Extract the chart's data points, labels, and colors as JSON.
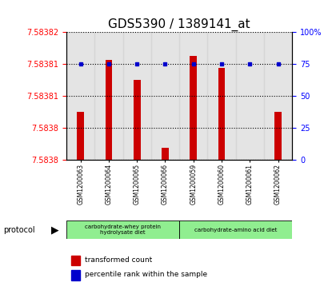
{
  "title": "GDS5390 / 1389141_at",
  "samples": [
    "GSM1200063",
    "GSM1200064",
    "GSM1200065",
    "GSM1200066",
    "GSM1200059",
    "GSM1200060",
    "GSM1200061",
    "GSM1200062"
  ],
  "red_values": [
    7.583802,
    7.583815,
    7.58381,
    7.583793,
    7.583816,
    7.583813,
    7.583781,
    7.583802
  ],
  "blue_values": [
    75,
    75,
    75,
    75,
    75,
    75,
    75,
    75
  ],
  "y_min": 7.58379,
  "y_max": 7.583822,
  "left_tick_labels": [
    "7.5838",
    "7.5838",
    "7.58381",
    "7.58381",
    "7.58382"
  ],
  "right_y_ticks": [
    0,
    25,
    50,
    75,
    100
  ],
  "right_y_labels": [
    "0",
    "25",
    "50",
    "75",
    "100%"
  ],
  "protocol_groups": [
    {
      "label": "carbohydrate-whey protein\nhydrolysate diet",
      "start": 0,
      "end": 4,
      "color": "#90ee90"
    },
    {
      "label": "carbohydrate-amino acid diet",
      "start": 4,
      "end": 8,
      "color": "#90ee90"
    }
  ],
  "legend_items": [
    {
      "color": "#cc0000",
      "label": "transformed count"
    },
    {
      "color": "#0000cc",
      "label": "percentile rank within the sample"
    }
  ],
  "bar_color": "#cc0000",
  "dot_color": "#0000cc",
  "title_fontsize": 11,
  "sample_bg_color": "#d3d3d3",
  "white_bg": "#ffffff"
}
